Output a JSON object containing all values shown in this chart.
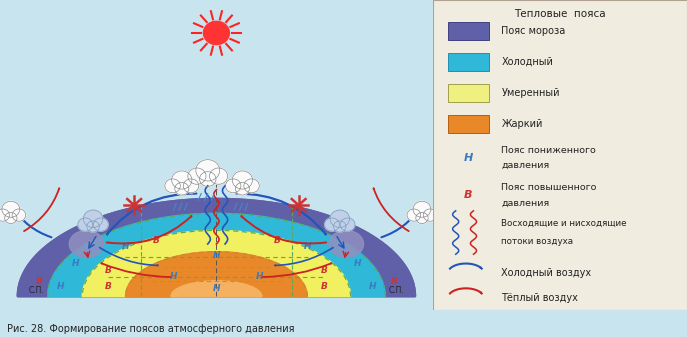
{
  "bg_color": "#b8dce8",
  "fig_bg": "#c8e5ef",
  "legend_bg": "#f0ede0",
  "legend_border": "#b0a090",
  "title_legend": "Тепловые  пояса",
  "caption": "Рис. 28. Формирование поясов атмосферного давления",
  "legend_items": [
    {
      "color": "#6060a8",
      "label": "Пояс мороза",
      "border": "#404080"
    },
    {
      "color": "#30b8d8",
      "label": "Холодный",
      "border": "#2090b0"
    },
    {
      "color": "#f0f080",
      "label": "Умеренный",
      "border": "#a0a050"
    },
    {
      "color": "#e88828",
      "label": "Жаркий",
      "border": "#b06010"
    }
  ],
  "H_color": "#3b7bbf",
  "B_color": "#cc3333",
  "sp_label": "С.П.",
  "op_label": "С.П.",
  "colors": {
    "frost": "#6060a8",
    "cold": "#30b8d8",
    "moderate": "#f0f060",
    "hot": "#e88828",
    "hot_center": "#f0a040",
    "arrow_cold": "#2255bb",
    "arrow_warm": "#cc2222",
    "dashed": "#5aaa5a",
    "dashed2": "#cc8833"
  },
  "sun_color": "#ff3333",
  "sun_ray_color": "#ff2222",
  "wind_symbol_color": "#cc3333"
}
